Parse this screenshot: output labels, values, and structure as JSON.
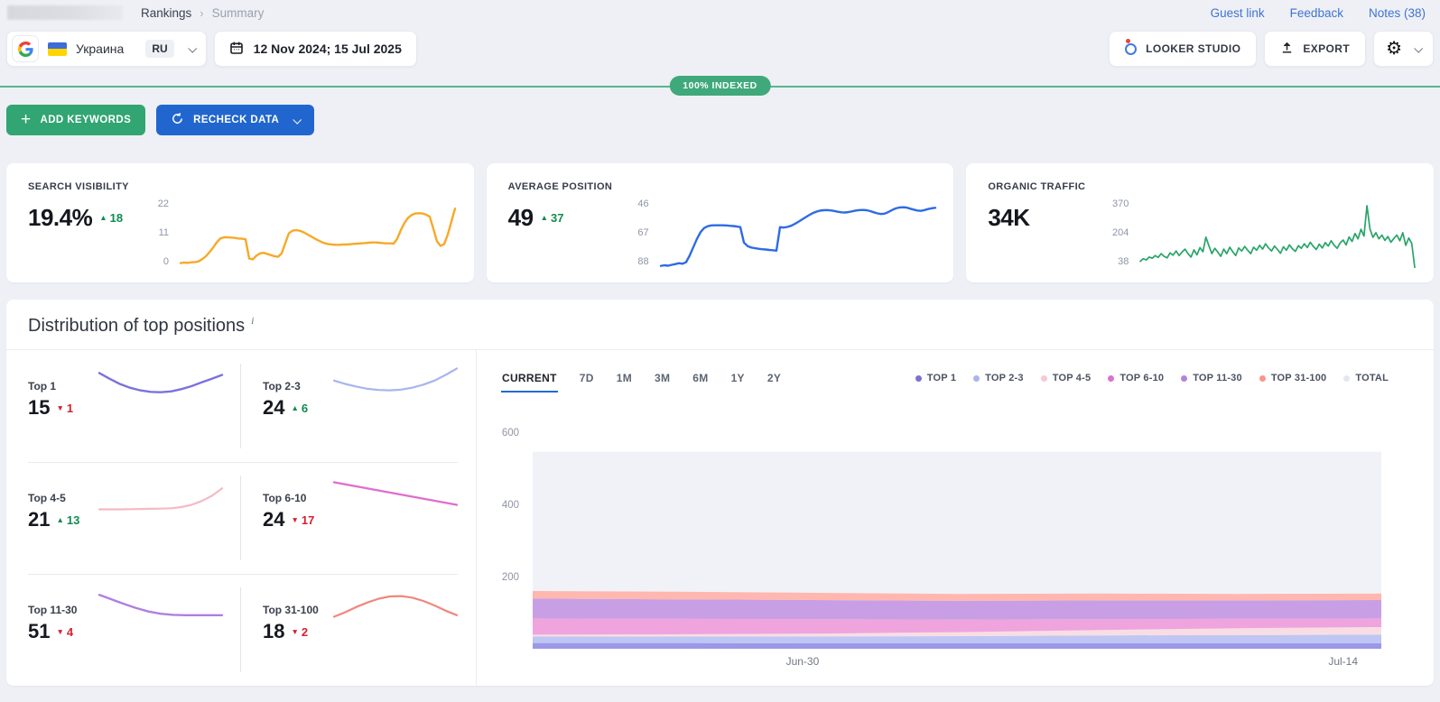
{
  "topbar": {
    "breadcrumb": {
      "parent": "Rankings",
      "separator": "›",
      "current": "Summary"
    },
    "links": [
      "Guest link",
      "Feedback",
      "Notes (38)"
    ]
  },
  "toolbar": {
    "project": {
      "name": "Украина",
      "language": "RU"
    },
    "date_range": "12 Nov 2024; 15 Jul 2025",
    "looker_label": "LOOKER STUDIO",
    "export_label": "EXPORT"
  },
  "indexed_badge": "100% INDEXED",
  "actions": {
    "add_keywords": "ADD KEYWORDS",
    "recheck_data": "RECHECK DATA"
  },
  "colors": {
    "accent_green": "#31a572",
    "accent_blue": "#2166cf",
    "link_blue": "#3f73d3",
    "badge_green": "#3fa97c"
  },
  "cards": [
    {
      "label": "SEARCH VISIBILITY",
      "value": "19.4%",
      "arrow": "▲",
      "delta": "18",
      "delta_color": "#108a51",
      "yticks": [
        "22",
        "11",
        "0"
      ]
    },
    {
      "label": "AVERAGE POSITION",
      "value": "49",
      "arrow": "▲",
      "delta": "37",
      "delta_color": "#108a51",
      "yticks": [
        "46",
        "67",
        "88"
      ]
    },
    {
      "label": "ORGANIC TRAFFIC",
      "value": "34K",
      "yticks": [
        "370",
        "204",
        "38"
      ]
    }
  ],
  "distribution": {
    "title": "Distribution of top positions",
    "info": "i",
    "tabs": [
      "CURRENT",
      "7D",
      "1M",
      "3M",
      "6M",
      "1Y",
      "2Y"
    ],
    "active_tab": "CURRENT",
    "legend": [
      {
        "label": "TOP 1",
        "color": "#7a70d8"
      },
      {
        "label": "TOP 2-3",
        "color": "#a9b4ee"
      },
      {
        "label": "TOP 4-5",
        "color": "#f6c9d4"
      },
      {
        "label": "TOP 6-10",
        "color": "#e070cf"
      },
      {
        "label": "TOP 11-30",
        "color": "#b283de"
      },
      {
        "label": "TOP 31-100",
        "color": "#f9958c"
      },
      {
        "label": "TOTAL",
        "color": "#e4e7f3"
      }
    ],
    "mini": [
      {
        "label": "Top 1",
        "value": "15",
        "arrow": "▼",
        "delta": "1",
        "delta_color": "#d8202e"
      },
      {
        "label": "Top 2-3",
        "value": "24",
        "arrow": "▲",
        "delta": "6",
        "delta_color": "#108a51"
      },
      {
        "label": "Top 4-5",
        "value": "21",
        "arrow": "▲",
        "delta": "13",
        "delta_color": "#108a51"
      },
      {
        "label": "Top 6-10",
        "value": "24",
        "arrow": "▼",
        "delta": "17",
        "delta_color": "#d8202e"
      },
      {
        "label": "Top 11-30",
        "value": "51",
        "arrow": "▼",
        "delta": "4",
        "delta_color": "#d8202e"
      },
      {
        "label": "Top 31-100",
        "value": "18",
        "arrow": "▼",
        "delta": "2",
        "delta_color": "#d8202e"
      }
    ]
  },
  "chart_data": [
    {
      "id": "search_visibility",
      "type": "line",
      "title": "Search visibility, %",
      "color": "#f7a928",
      "stroke": 2.4,
      "ylim": [
        0,
        22
      ],
      "yticks_labels": [
        22,
        11,
        0
      ],
      "values": [
        2.0,
        2.2,
        2.1,
        2.3,
        2.4,
        2.6,
        3.4,
        4.4,
        5.8,
        7.4,
        9.2,
        10.6,
        11.0,
        11.0,
        10.9,
        10.8,
        10.6,
        10.5,
        10.3,
        3.6,
        3.3,
        4.6,
        5.4,
        5.6,
        5.2,
        4.8,
        4.4,
        4.2,
        5.4,
        9.0,
        12.4,
        13.3,
        13.5,
        13.3,
        12.8,
        12.1,
        11.4,
        10.7,
        10.0,
        9.4,
        8.9,
        8.6,
        8.5,
        8.4,
        8.4,
        8.5,
        8.5,
        8.6,
        8.7,
        8.8,
        8.9,
        9.0,
        9.1,
        9.2,
        9.2,
        9.1,
        9.0,
        8.9,
        8.9,
        8.8,
        10.5,
        13.5,
        16.0,
        17.8,
        18.8,
        19.3,
        19.4,
        19.3,
        18.9,
        18.2,
        14.0,
        9.6,
        8.0,
        8.6,
        12.0,
        16.5,
        21.0
      ]
    },
    {
      "id": "average_position",
      "type": "line",
      "title": "Average position",
      "color": "#2e6be5",
      "stroke": 2.4,
      "ylim": [
        88,
        46
      ],
      "yticks_labels": [
        46,
        67,
        88
      ],
      "values": [
        86,
        85.6,
        85.9,
        85.3,
        84.8,
        84.2,
        84.6,
        83.5,
        79,
        73.5,
        68,
        63.5,
        60.8,
        59.6,
        59.1,
        59,
        59,
        59,
        59.1,
        59.3,
        59.5,
        59.8,
        60.2,
        70.5,
        72.8,
        73.8,
        74.2,
        74.6,
        74.9,
        75.1,
        75.4,
        75.6,
        75.9,
        60.2,
        60.5,
        60.1,
        59.4,
        58.2,
        56.8,
        55.3,
        53.8,
        52.3,
        51,
        50,
        49.3,
        49,
        48.9,
        49.1,
        49.5,
        50,
        50.4,
        50.5,
        50.2,
        49.7,
        49.2,
        48.9,
        48.8,
        49,
        49.6,
        50.4,
        51.1,
        51.5,
        51.2,
        50.2,
        48.9,
        47.8,
        47.2,
        47,
        47.2,
        47.9,
        48.6,
        49.2,
        49.4,
        48.9,
        48.2,
        47.7,
        47.4
      ]
    },
    {
      "id": "organic_traffic",
      "type": "line",
      "title": "Organic traffic",
      "color": "#27a567",
      "stroke": 1.7,
      "ylim": [
        38,
        370
      ],
      "yticks_labels": [
        370,
        204,
        38
      ],
      "values": [
        78,
        92,
        85,
        100,
        94,
        108,
        98,
        118,
        104,
        96,
        122,
        110,
        132,
        108,
        126,
        142,
        118,
        100,
        138,
        112,
        150,
        128,
        205,
        160,
        118,
        146,
        126,
        104,
        142,
        118,
        152,
        128,
        108,
        148,
        132,
        156,
        136,
        118,
        152,
        136,
        162,
        142,
        170,
        148,
        132,
        158,
        140,
        120,
        154,
        136,
        164,
        144,
        130,
        160,
        146,
        170,
        150,
        178,
        156,
        140,
        168,
        148,
        176,
        158,
        186,
        162,
        146,
        174,
        190,
        164,
        206,
        182,
        224,
        196,
        246,
        210,
        370,
        248,
        204,
        228,
        196,
        216,
        188,
        208,
        178,
        198,
        216,
        186,
        228,
        162,
        200,
        172,
        46
      ]
    },
    {
      "id": "mini_top1",
      "type": "line",
      "color": "#7b72dd",
      "stroke": 2.4,
      "ylim": [
        0,
        12
      ],
      "values": [
        9.5,
        8.0,
        6.6,
        5.6,
        4.9,
        4.5,
        4.4,
        4.6,
        5.2,
        6.0,
        7.0,
        8.0,
        9.0
      ]
    },
    {
      "id": "mini_top2_3",
      "type": "line",
      "color": "#a9b4ee",
      "stroke": 2.2,
      "ylim": [
        0,
        12
      ],
      "values": [
        7.5,
        6.6,
        5.9,
        5.3,
        5.0,
        4.9,
        5.1,
        5.6,
        6.4,
        7.5,
        9.0,
        10.7
      ]
    },
    {
      "id": "mini_top4_5",
      "type": "line",
      "color": "#f4bac5",
      "stroke": 2.2,
      "ylim": [
        0,
        12
      ],
      "values": [
        3.0,
        3.0,
        3.0,
        3.05,
        3.1,
        3.15,
        3.2,
        3.3,
        3.6,
        4.2,
        5.2,
        6.6,
        8.6
      ]
    },
    {
      "id": "mini_top6_10",
      "type": "line",
      "color": "#de6fcd",
      "stroke": 2.4,
      "ylim": [
        0,
        12
      ],
      "values": [
        10.2,
        9.6,
        9.0,
        8.4,
        7.8,
        7.2,
        6.6,
        6.0,
        5.4,
        4.8,
        4.2
      ]
    },
    {
      "id": "mini_top11_30",
      "type": "line",
      "color": "#b07fe0",
      "stroke": 2.4,
      "ylim": [
        0,
        12
      ],
      "values": [
        10.0,
        8.8,
        7.6,
        6.5,
        5.6,
        5.0,
        4.7,
        4.6,
        4.6,
        4.6,
        4.6
      ]
    },
    {
      "id": "mini_top31_100",
      "type": "line",
      "color": "#f0877d",
      "stroke": 2.2,
      "ylim": [
        0,
        12
      ],
      "values": [
        4.2,
        5.4,
        6.8,
        8.0,
        9.0,
        9.6,
        9.7,
        9.3,
        8.4,
        7.2,
        5.8,
        4.6
      ]
    },
    {
      "id": "positions",
      "type": "stacked-area",
      "title": "Distribution of top positions",
      "ylim": [
        0,
        640
      ],
      "yticks": [
        200,
        400,
        600
      ],
      "xticks": [
        {
          "label": "Jun-30",
          "pos": 0.318
        },
        {
          "label": "Jul-14",
          "pos": 0.955
        }
      ],
      "total": {
        "name": "TOTAL",
        "value": 546,
        "color": "#f1f2f8"
      },
      "series": [
        {
          "name": "TOP 1",
          "color": "#9b98e8",
          "values": [
            16,
            16,
            15,
            15,
            15,
            15,
            15
          ]
        },
        {
          "name": "TOP 2-3",
          "color": "#bfc6f3",
          "values": [
            18,
            18,
            19,
            20,
            22,
            23,
            24
          ]
        },
        {
          "name": "TOP 4-5",
          "color": "#f8dee4",
          "values": [
            5,
            6,
            8,
            11,
            15,
            19,
            21
          ]
        },
        {
          "name": "TOP 6-10",
          "color": "#efa4de",
          "values": [
            45,
            43,
            40,
            35,
            30,
            26,
            24
          ]
        },
        {
          "name": "TOP 11-30",
          "color": "#c89fe4",
          "values": [
            55,
            54,
            53,
            52,
            52,
            51,
            51
          ]
        },
        {
          "name": "TOP 31-100",
          "color": "#ffb7b0",
          "values": [
            21,
            21,
            20,
            19,
            19,
            18,
            18
          ]
        }
      ]
    }
  ]
}
